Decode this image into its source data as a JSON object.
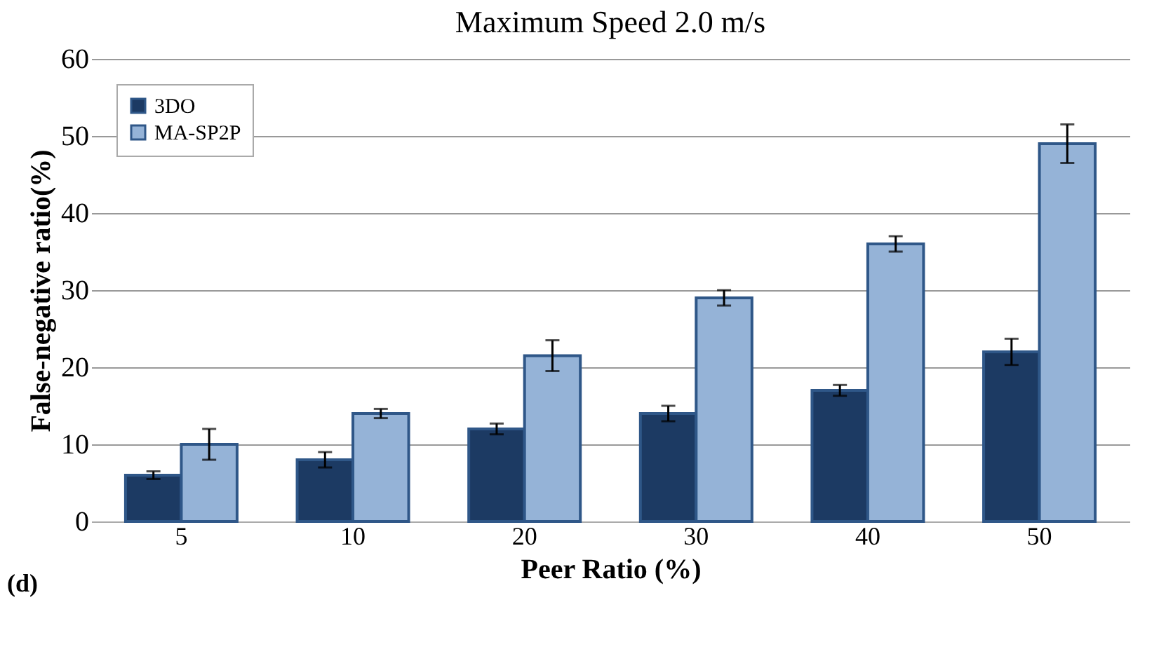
{
  "chart_data": {
    "type": "bar",
    "title": "Maximum Speed 2.0 m/s",
    "xlabel": "Peer Ratio (%)",
    "ylabel": "False-negative ratio(%)",
    "categories": [
      "5",
      "10",
      "20",
      "30",
      "40",
      "50"
    ],
    "series": [
      {
        "name": "3DO",
        "color": "#1c3a63",
        "values": [
          6,
          8,
          12,
          14,
          17,
          22
        ],
        "errors": [
          0.5,
          1,
          0.7,
          1,
          0.7,
          1.7
        ]
      },
      {
        "name": "MA-SP2P",
        "color": "#95b3d7",
        "values": [
          10,
          14,
          21.5,
          29,
          36,
          49
        ],
        "errors": [
          2,
          0.6,
          2,
          1,
          1,
          2.5
        ]
      }
    ],
    "ylim": [
      0,
      60
    ],
    "yticks": [
      0,
      10,
      20,
      30,
      40,
      50,
      60
    ],
    "grid": "y",
    "legend": "top left",
    "annotations": [
      "(d)"
    ]
  }
}
